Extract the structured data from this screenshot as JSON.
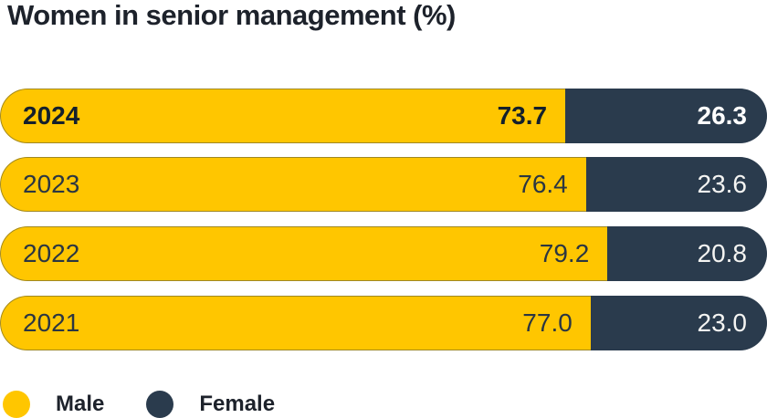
{
  "title": "Women in senior management (%)",
  "colors": {
    "male": "#FFC600",
    "female": "#2A3B4D",
    "text_dark": "#1d222b",
    "text_light": "#ffffff"
  },
  "chart_data": {
    "type": "bar",
    "orientation": "horizontal",
    "stacked": true,
    "unit": "%",
    "title": "Women in senior management (%)",
    "categories": [
      "2024",
      "2023",
      "2022",
      "2021"
    ],
    "series": [
      {
        "name": "Male",
        "color": "#FFC600",
        "values": [
          73.7,
          76.4,
          79.2,
          77.0
        ]
      },
      {
        "name": "Female",
        "color": "#2A3B4D",
        "values": [
          26.3,
          23.6,
          20.8,
          23.0
        ]
      }
    ],
    "xlim": [
      0,
      100
    ],
    "grid": false,
    "legend_position": "bottom",
    "highlighted_category": "2024"
  },
  "rows": [
    {
      "year": "2024",
      "male": "73.7",
      "female": "26.3"
    },
    {
      "year": "2023",
      "male": "76.4",
      "female": "23.6"
    },
    {
      "year": "2022",
      "male": "79.2",
      "female": "20.8"
    },
    {
      "year": "2021",
      "male": "77.0",
      "female": "23.0"
    }
  ],
  "legend": {
    "male_label": "Male",
    "female_label": "Female"
  }
}
